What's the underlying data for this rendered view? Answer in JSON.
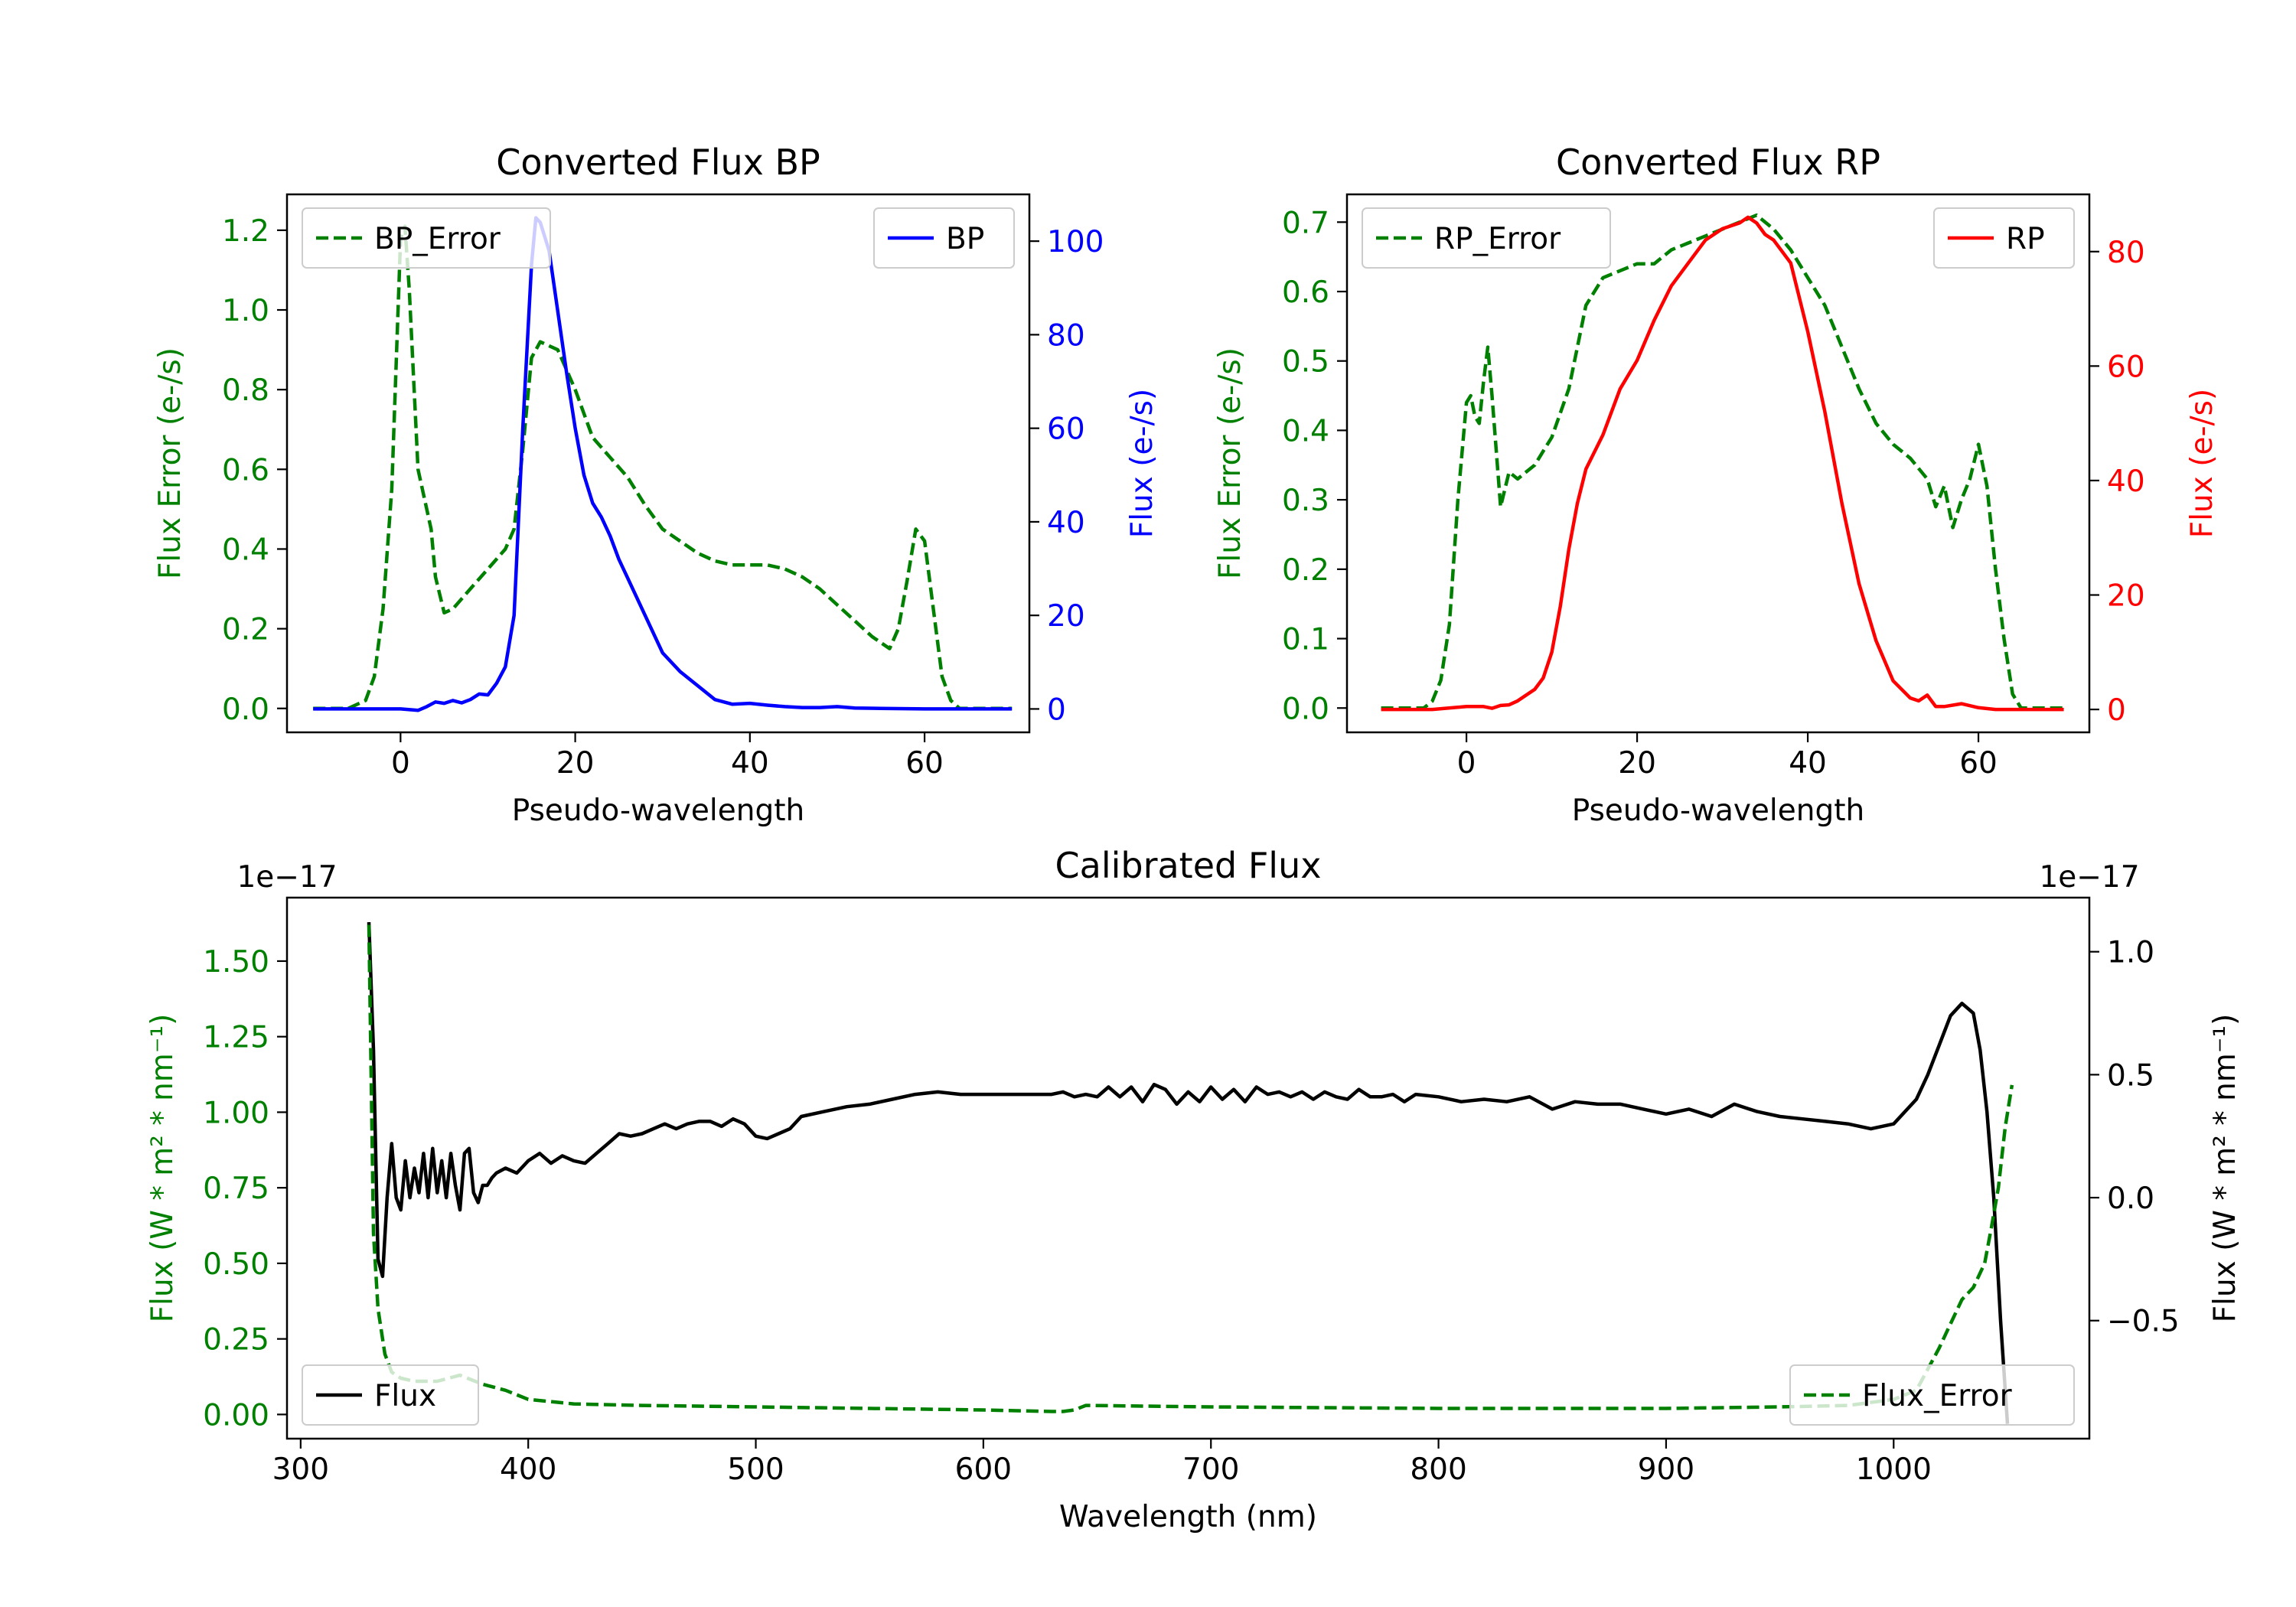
{
  "colors": {
    "green": "#008000",
    "blue": "#0000ff",
    "red": "#ff0000",
    "black": "#000000",
    "axis": "#000000",
    "legend_border": "#cccccc"
  },
  "chart_data": [
    {
      "id": "bp",
      "type": "line",
      "title": "Converted Flux BP",
      "xlabel": "Pseudo-wavelength",
      "ylabel_left": "Flux Error (e-/s)",
      "ylabel_right": "Flux (e-/s)",
      "xlim": [
        -13,
        72
      ],
      "ylim_left": [
        -0.06,
        1.29
      ],
      "ylim_right": [
        -5,
        110
      ],
      "xticks": [
        0,
        20,
        40,
        60
      ],
      "xtick_labels": [
        "0",
        "20",
        "40",
        "60"
      ],
      "yticks_left": [
        0.0,
        0.2,
        0.4,
        0.6,
        0.8,
        1.0,
        1.2
      ],
      "ytick_labels_left": [
        "0.0",
        "0.2",
        "0.4",
        "0.6",
        "0.8",
        "1.0",
        "1.2"
      ],
      "yticks_right": [
        0,
        20,
        40,
        60,
        80,
        100
      ],
      "ytick_labels_right": [
        "0",
        "20",
        "40",
        "60",
        "80",
        "100"
      ],
      "left_color": "green",
      "right_color": "blue",
      "legend_left": "BP_Error",
      "legend_right": "BP",
      "series": [
        {
          "name": "BP_Error",
          "axis": "left",
          "color": "green",
          "dash": true,
          "x": [
            -10,
            -6,
            -4,
            -3,
            -2,
            -1,
            0,
            0.5,
            1,
            2,
            3,
            3.5,
            4,
            5,
            6,
            8,
            10,
            12,
            13,
            14,
            15,
            16,
            18,
            20,
            22,
            24,
            26,
            28,
            30,
            32,
            34,
            36,
            38,
            40,
            42,
            44,
            46,
            48,
            50,
            52,
            54,
            56,
            57,
            58,
            59,
            60,
            61,
            62,
            63,
            64,
            66,
            70
          ],
          "y": [
            0.0,
            0.0,
            0.02,
            0.08,
            0.25,
            0.55,
            1.18,
            1.21,
            1.05,
            0.6,
            0.5,
            0.45,
            0.33,
            0.24,
            0.25,
            0.3,
            0.35,
            0.4,
            0.45,
            0.65,
            0.88,
            0.92,
            0.9,
            0.8,
            0.68,
            0.63,
            0.58,
            0.51,
            0.45,
            0.42,
            0.39,
            0.37,
            0.36,
            0.36,
            0.36,
            0.35,
            0.33,
            0.3,
            0.26,
            0.22,
            0.18,
            0.15,
            0.2,
            0.32,
            0.45,
            0.42,
            0.25,
            0.08,
            0.02,
            0.0,
            0.0,
            0.0
          ]
        },
        {
          "name": "BP",
          "axis": "right",
          "color": "blue",
          "dash": false,
          "x": [
            -10,
            -5,
            0,
            2,
            3,
            4,
            5,
            6,
            7,
            8,
            9,
            10,
            11,
            12,
            13,
            14,
            15,
            15.5,
            16,
            17,
            18,
            19,
            20,
            21,
            22,
            23,
            24,
            25,
            26,
            28,
            30,
            32,
            34,
            36,
            38,
            40,
            42,
            44,
            46,
            48,
            50,
            52,
            55,
            60,
            65,
            70
          ],
          "y": [
            0,
            0,
            0,
            -0.3,
            0.5,
            1.5,
            1.2,
            1.8,
            1.3,
            2.0,
            3.2,
            3.0,
            5.5,
            9.0,
            20,
            60,
            95,
            105,
            104,
            98,
            85,
            72,
            60,
            50,
            44,
            41,
            37,
            32,
            28,
            20,
            12,
            8,
            5,
            2,
            1,
            1.2,
            0.8,
            0.5,
            0.3,
            0.3,
            0.5,
            0.2,
            0.1,
            0.0,
            0.0,
            0.0
          ]
        }
      ]
    },
    {
      "id": "rp",
      "type": "line",
      "title": "Converted Flux RP",
      "xlabel": "Pseudo-wavelength",
      "ylabel_left": "Flux Error (e-/s)",
      "ylabel_right": "Flux (e-/s)",
      "xlim": [
        -14,
        73
      ],
      "ylim_left": [
        -0.035,
        0.74
      ],
      "ylim_right": [
        -4,
        90
      ],
      "xticks": [
        0,
        20,
        40,
        60
      ],
      "xtick_labels": [
        "0",
        "20",
        "40",
        "60"
      ],
      "yticks_left": [
        0.0,
        0.1,
        0.2,
        0.3,
        0.4,
        0.5,
        0.6,
        0.7
      ],
      "ytick_labels_left": [
        "0.0",
        "0.1",
        "0.2",
        "0.3",
        "0.4",
        "0.5",
        "0.6",
        "0.7"
      ],
      "yticks_right": [
        0,
        20,
        40,
        60,
        80
      ],
      "ytick_labels_right": [
        "0",
        "20",
        "40",
        "60",
        "80"
      ],
      "left_color": "green",
      "right_color": "red",
      "legend_left": "RP_Error",
      "legend_right": "RP",
      "series": [
        {
          "name": "RP_Error",
          "axis": "left",
          "color": "green",
          "dash": true,
          "x": [
            -10,
            -5,
            -4,
            -3,
            -2,
            -1,
            0,
            0.5,
            1,
            1.5,
            2,
            2.5,
            3,
            4,
            5,
            6,
            7,
            8,
            9,
            10,
            12,
            14,
            16,
            18,
            20,
            22,
            24,
            26,
            28,
            30,
            32,
            34,
            36,
            38,
            40,
            42,
            44,
            46,
            48,
            50,
            52,
            54,
            55,
            56,
            57,
            58,
            59,
            60,
            61,
            62,
            63,
            64,
            65,
            70
          ],
          "y": [
            0.0,
            0.0,
            0.01,
            0.04,
            0.12,
            0.3,
            0.44,
            0.45,
            0.42,
            0.41,
            0.47,
            0.52,
            0.45,
            0.29,
            0.34,
            0.33,
            0.34,
            0.35,
            0.37,
            0.39,
            0.46,
            0.58,
            0.62,
            0.63,
            0.64,
            0.64,
            0.66,
            0.67,
            0.68,
            0.69,
            0.7,
            0.71,
            0.69,
            0.66,
            0.62,
            0.58,
            0.52,
            0.46,
            0.41,
            0.38,
            0.36,
            0.33,
            0.29,
            0.32,
            0.26,
            0.3,
            0.33,
            0.38,
            0.32,
            0.2,
            0.1,
            0.02,
            0.0,
            0.0
          ]
        },
        {
          "name": "RP",
          "axis": "right",
          "color": "red",
          "dash": false,
          "x": [
            -10,
            -4,
            0,
            2,
            3,
            4,
            5,
            6,
            7,
            8,
            9,
            10,
            11,
            12,
            13,
            14,
            16,
            18,
            20,
            22,
            24,
            26,
            28,
            30,
            32,
            33,
            34,
            35,
            36,
            38,
            40,
            42,
            44,
            46,
            48,
            50,
            52,
            53,
            54,
            55,
            56,
            58,
            60,
            62,
            64,
            70
          ],
          "y": [
            0,
            0,
            0.5,
            0.5,
            0.2,
            0.7,
            0.8,
            1.5,
            2.5,
            3.5,
            5.5,
            10,
            18,
            28,
            36,
            42,
            48,
            56,
            61,
            68,
            74,
            78,
            82,
            84,
            85,
            86,
            85,
            83,
            82,
            78,
            66,
            52,
            36,
            22,
            12,
            5,
            2,
            1.5,
            2.5,
            0.5,
            0.5,
            1.0,
            0.3,
            0.0,
            0.0,
            0.0
          ]
        }
      ]
    },
    {
      "id": "calibrated",
      "type": "line",
      "title": "Calibrated Flux",
      "xlabel": "Wavelength (nm)",
      "ylabel_left": "Flux (W * m² * nm⁻¹)",
      "ylabel_right": "Flux (W * m² * nm⁻¹)",
      "offset_left": "1e−17",
      "offset_right": "1e−17",
      "xlim": [
        294,
        1086
      ],
      "ylim_left": [
        -0.08,
        1.71
      ],
      "ylim_right": [
        -0.98,
        1.22
      ],
      "xticks": [
        300,
        400,
        500,
        600,
        700,
        800,
        900,
        1000
      ],
      "xtick_labels": [
        "300",
        "400",
        "500",
        "600",
        "700",
        "800",
        "900",
        "1000"
      ],
      "yticks_left": [
        0.0,
        0.25,
        0.5,
        0.75,
        1.0,
        1.25,
        1.5
      ],
      "ytick_labels_left": [
        "0.00",
        "0.25",
        "0.50",
        "0.75",
        "1.00",
        "1.25",
        "1.50"
      ],
      "yticks_right": [
        -0.5,
        0.0,
        0.5,
        1.0
      ],
      "ytick_labels_right": [
        "−0.5",
        "0.0",
        "0.5",
        "1.0"
      ],
      "left_color": "green",
      "right_color": "black",
      "legend_left": "Flux",
      "legend_right": "Flux_Error",
      "series": [
        {
          "name": "Flux",
          "axis": "right",
          "color": "black",
          "dash": false,
          "x": [
            330,
            332,
            334,
            336,
            338,
            340,
            342,
            344,
            346,
            348,
            350,
            352,
            354,
            356,
            358,
            360,
            362,
            364,
            366,
            368,
            370,
            372,
            374,
            376,
            378,
            380,
            382,
            384,
            386,
            390,
            395,
            400,
            405,
            410,
            415,
            420,
            425,
            430,
            435,
            440,
            445,
            450,
            455,
            460,
            465,
            470,
            475,
            480,
            485,
            490,
            495,
            500,
            505,
            510,
            515,
            520,
            530,
            540,
            550,
            560,
            570,
            580,
            590,
            600,
            610,
            620,
            630,
            635,
            640,
            645,
            650,
            655,
            660,
            665,
            670,
            675,
            680,
            685,
            690,
            695,
            700,
            705,
            710,
            715,
            720,
            725,
            730,
            735,
            740,
            745,
            750,
            755,
            760,
            765,
            770,
            775,
            780,
            785,
            790,
            800,
            810,
            820,
            830,
            840,
            850,
            860,
            870,
            880,
            890,
            900,
            910,
            920,
            930,
            940,
            950,
            960,
            970,
            980,
            990,
            1000,
            1010,
            1015,
            1020,
            1025,
            1030,
            1035,
            1038,
            1041,
            1044,
            1047,
            1050
          ],
          "y": [
            1.12,
            0.6,
            -0.25,
            -0.32,
            0.0,
            0.22,
            0.0,
            -0.05,
            0.15,
            0.0,
            0.12,
            0.02,
            0.18,
            0.0,
            0.2,
            0.02,
            0.15,
            0.0,
            0.18,
            0.05,
            -0.05,
            0.18,
            0.2,
            0.02,
            -0.02,
            0.05,
            0.05,
            0.08,
            0.1,
            0.12,
            0.1,
            0.15,
            0.18,
            0.14,
            0.17,
            0.15,
            0.14,
            0.18,
            0.22,
            0.26,
            0.25,
            0.26,
            0.28,
            0.3,
            0.28,
            0.3,
            0.31,
            0.31,
            0.29,
            0.32,
            0.3,
            0.25,
            0.24,
            0.26,
            0.28,
            0.33,
            0.35,
            0.37,
            0.38,
            0.4,
            0.42,
            0.43,
            0.42,
            0.42,
            0.42,
            0.42,
            0.42,
            0.43,
            0.41,
            0.42,
            0.41,
            0.45,
            0.41,
            0.45,
            0.39,
            0.46,
            0.44,
            0.38,
            0.43,
            0.39,
            0.45,
            0.4,
            0.44,
            0.39,
            0.45,
            0.42,
            0.43,
            0.41,
            0.43,
            0.4,
            0.43,
            0.41,
            0.4,
            0.44,
            0.41,
            0.41,
            0.42,
            0.39,
            0.42,
            0.41,
            0.39,
            0.4,
            0.39,
            0.41,
            0.36,
            0.39,
            0.38,
            0.38,
            0.36,
            0.34,
            0.36,
            0.33,
            0.38,
            0.35,
            0.33,
            0.32,
            0.31,
            0.3,
            0.28,
            0.3,
            0.4,
            0.5,
            0.62,
            0.74,
            0.79,
            0.75,
            0.6,
            0.35,
            0.0,
            -0.5,
            -0.92
          ]
        },
        {
          "name": "Flux_Error",
          "axis": "left",
          "color": "green",
          "dash": true,
          "x": [
            330,
            332,
            334,
            337,
            340,
            344,
            350,
            360,
            370,
            380,
            390,
            400,
            420,
            450,
            500,
            550,
            600,
            630,
            635,
            640,
            645,
            700,
            800,
            900,
            950,
            980,
            1000,
            1010,
            1015,
            1020,
            1025,
            1030,
            1035,
            1040,
            1043,
            1046,
            1049,
            1052
          ],
          "y": [
            1.62,
            0.6,
            0.35,
            0.2,
            0.14,
            0.12,
            0.11,
            0.11,
            0.13,
            0.1,
            0.08,
            0.05,
            0.035,
            0.03,
            0.025,
            0.02,
            0.015,
            0.01,
            0.01,
            0.015,
            0.03,
            0.025,
            0.02,
            0.02,
            0.025,
            0.03,
            0.05,
            0.08,
            0.15,
            0.22,
            0.3,
            0.38,
            0.42,
            0.5,
            0.62,
            0.75,
            0.95,
            1.09
          ]
        }
      ]
    }
  ]
}
